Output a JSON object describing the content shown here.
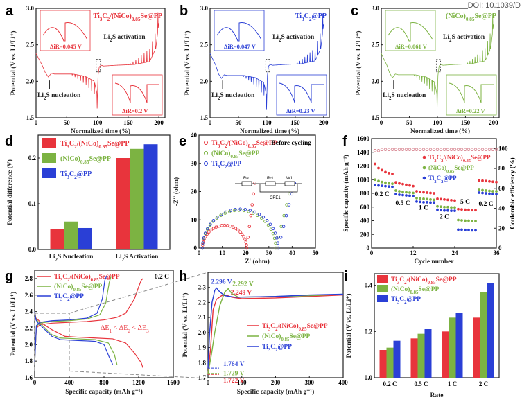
{
  "doi": "DOI: 10.1039/D",
  "colors": {
    "red": "#e8343c",
    "green": "#7cb342",
    "blue": "#2a3fd6",
    "axis": "#222",
    "dash": "#888"
  },
  "chart_data": [
    {
      "id": "a",
      "letter": "a",
      "type": "line",
      "legend": "Ti3C2/(NiCo)0.85Se@PP",
      "series_color": "red",
      "xlabel": "Normalized time (%)",
      "ylabel": "Potential (V vs. Li/Li⁺)",
      "xlim": [
        0,
        210
      ],
      "ylim": [
        1.5,
        3.0
      ],
      "xticks": [
        0,
        50,
        100,
        150,
        200
      ],
      "yticks": [
        1.5,
        2.0,
        2.5,
        3.0
      ],
      "x": [
        0,
        5,
        10,
        15,
        20,
        25,
        30,
        40,
        60,
        80,
        95,
        100,
        101,
        103,
        106,
        110,
        130,
        160,
        185,
        195,
        200
      ],
      "y": [
        2.38,
        2.3,
        2.22,
        2.12,
        2.06,
        2.11,
        2.1,
        2.1,
        2.1,
        2.07,
        2.0,
        1.8,
        2.08,
        2.2,
        2.22,
        2.21,
        2.22,
        2.23,
        2.27,
        2.45,
        2.8
      ],
      "nucleation_label": "Li2S nucleation",
      "activation_label": "Li2S activation",
      "inset_top_dIR": "ΔiR=0.045 V",
      "inset_bottom_dIR": "ΔiR=0.2 V"
    },
    {
      "id": "b",
      "letter": "b",
      "type": "line",
      "legend": "Ti3C2@PP",
      "series_color": "blue",
      "xlabel": "Normalized time (%)",
      "ylabel": "Potential (V vs. Li/Li⁺)",
      "xlim": [
        0,
        210
      ],
      "ylim": [
        1.5,
        3.0
      ],
      "xticks": [
        0,
        50,
        100,
        150,
        200
      ],
      "yticks": [
        1.5,
        2.0,
        2.5,
        3.0
      ],
      "x": [
        0,
        5,
        10,
        15,
        20,
        25,
        30,
        40,
        60,
        80,
        95,
        100,
        101,
        103,
        106,
        110,
        130,
        160,
        185,
        195,
        200
      ],
      "y": [
        2.38,
        2.3,
        2.22,
        2.1,
        2.04,
        2.09,
        2.08,
        2.08,
        2.08,
        2.05,
        1.98,
        1.78,
        2.08,
        2.21,
        2.23,
        2.22,
        2.23,
        2.24,
        2.28,
        2.45,
        2.78
      ],
      "nucleation_label": "Li2S nucleation",
      "activation_label": "Li2S activation",
      "inset_top_dIR": "ΔiR=0.047 V",
      "inset_bottom_dIR": "ΔiR=0.23 V"
    },
    {
      "id": "c",
      "letter": "c",
      "type": "line",
      "legend": "(NiCo)0.85Se@PP",
      "series_color": "green",
      "xlabel": "Normalized time (%)",
      "ylabel": "Potential (V vs. Li/Li⁺)",
      "xlim": [
        0,
        210
      ],
      "ylim": [
        1.5,
        3.0
      ],
      "xticks": [
        0,
        50,
        100,
        150,
        200
      ],
      "yticks": [
        1.5,
        2.0,
        2.5,
        3.0
      ],
      "x": [
        0,
        5,
        10,
        15,
        20,
        25,
        30,
        40,
        60,
        80,
        95,
        100,
        101,
        103,
        106,
        110,
        130,
        160,
        185,
        195,
        200
      ],
      "y": [
        2.38,
        2.3,
        2.22,
        2.11,
        2.05,
        2.1,
        2.09,
        2.09,
        2.09,
        2.06,
        1.99,
        1.79,
        2.08,
        2.21,
        2.23,
        2.22,
        2.23,
        2.24,
        2.28,
        2.45,
        2.78
      ],
      "nucleation_label": "Li2S nucleation",
      "activation_label": "Li2S activation",
      "inset_top_dIR": "ΔiR=0.061 V",
      "inset_bottom_dIR": "ΔiR=0.22 V"
    },
    {
      "id": "d",
      "letter": "d",
      "type": "bar",
      "ylabel": "Potential difference (V)",
      "categories": [
        "Li2S Nucleation",
        "Li2S Activation"
      ],
      "ylim": [
        0,
        0.25
      ],
      "yticks": [
        0.0,
        0.1,
        0.2
      ],
      "series": [
        {
          "name": "Ti3C2/(NiCo)0.85Se@PP",
          "color": "red",
          "values": [
            0.045,
            0.2
          ]
        },
        {
          "name": "(NiCo)0.85Se@PP",
          "color": "green",
          "values": [
            0.061,
            0.22
          ]
        },
        {
          "name": "Ti3C2@PP",
          "color": "blue",
          "values": [
            0.047,
            0.23
          ]
        }
      ]
    },
    {
      "id": "e",
      "letter": "e",
      "type": "scatter",
      "xlabel": "Z' (ohm)",
      "ylabel": "-Z'' (ohm)",
      "xlim": [
        0,
        50
      ],
      "ylim": [
        0,
        40
      ],
      "xticks": [
        0,
        10,
        20,
        30,
        40,
        50
      ],
      "yticks": [
        0,
        10,
        20,
        30,
        40
      ],
      "annotation": "Before cycling",
      "circuit_labels": [
        "Re",
        "Rct",
        "W1",
        "CPE1"
      ],
      "series": [
        {
          "name": "Ti3C2/(NiCo)0.85Se@PP",
          "color": "red",
          "semicircle": [
            1.5,
            20.5
          ],
          "tail_end": [
            24,
            23
          ]
        },
        {
          "name": "(NiCo)0.85Se@PP",
          "color": "green",
          "semicircle": [
            1.5,
            33
          ],
          "tail_end": [
            40,
            23
          ]
        },
        {
          "name": "Ti3C2@PP",
          "color": "blue",
          "semicircle": [
            1.5,
            34
          ],
          "tail_end": [
            41,
            23
          ]
        }
      ]
    },
    {
      "id": "f",
      "letter": "f",
      "type": "scatter",
      "xlabel": "Cycle number",
      "ylabel": "Specific capacity (mAh g⁻¹)",
      "y2label": "Coulombic efficiency (%)",
      "xlim": [
        0,
        36
      ],
      "ylim": [
        0,
        1600
      ],
      "xticks": [
        0,
        12,
        24,
        36
      ],
      "yticks": [
        0,
        200,
        400,
        600,
        800,
        1000,
        1200,
        1400,
        1600
      ],
      "y2lim": [
        0,
        110
      ],
      "y2ticks": [
        0,
        20,
        40,
        60,
        80,
        100
      ],
      "rates": [
        "0.2 C",
        "0.5 C",
        "1 C",
        "2 C",
        "5 C",
        "0.2 C"
      ],
      "series": [
        {
          "name": "Ti3C2/(NiCo)0.85Se@PP",
          "color": "red",
          "values": [
            1230,
            1170,
            1140,
            1110,
            1095,
            1085,
            960,
            945,
            935,
            925,
            915,
            905,
            830,
            820,
            815,
            810,
            805,
            800,
            720,
            715,
            710,
            705,
            700,
            695,
            570,
            565,
            560,
            560,
            555,
            555,
            990,
            985,
            980,
            975,
            970,
            965
          ]
        },
        {
          "name": "(NiCo)0.85Se@PP",
          "color": "green",
          "values": [
            1000,
            980,
            965,
            955,
            945,
            940,
            840,
            830,
            820,
            815,
            810,
            805,
            730,
            725,
            720,
            715,
            710,
            705,
            610,
            605,
            600,
            600,
            595,
            595,
            410,
            405,
            400,
            400,
            395,
            395,
            850,
            845,
            840,
            835,
            830,
            830
          ]
        },
        {
          "name": "Ti3C2@PP",
          "color": "blue",
          "values": [
            920,
            915,
            910,
            905,
            900,
            895,
            790,
            780,
            775,
            770,
            765,
            760,
            680,
            675,
            670,
            670,
            665,
            665,
            560,
            555,
            550,
            550,
            545,
            545,
            270,
            270,
            265,
            265,
            260,
            260,
            810,
            805,
            800,
            795,
            790,
            790
          ]
        }
      ],
      "ce": [
        98,
        98,
        99,
        99,
        99,
        99,
        99,
        99,
        99,
        99,
        99,
        99,
        99,
        99,
        99,
        99,
        99,
        99,
        99,
        99,
        99,
        99,
        99,
        99,
        99,
        99,
        99,
        99,
        99,
        99,
        99,
        99,
        99,
        99,
        99,
        99
      ]
    },
    {
      "id": "g",
      "letter": "g",
      "type": "line",
      "xlabel": "Specific capacity (mAh g⁻¹)",
      "ylabel": "Potential (V vs. Li/Li⁺)",
      "xlim": [
        0,
        1600
      ],
      "ylim": [
        1.6,
        2.9
      ],
      "xticks": [
        0,
        400,
        800,
        1200,
        1600
      ],
      "yticks": [
        1.6,
        1.8,
        2.0,
        2.2,
        2.4,
        2.6,
        2.8
      ],
      "rate": "0.2 C",
      "annotation": "ΔE1 < ΔE2 < ΔE3",
      "series": [
        {
          "name": "Ti3C2/(NiCo)0.85Se@PP",
          "color": "red",
          "discharge": {
            "x": [
              0,
              15,
              40,
              80,
              200,
              350,
              500,
              700,
              900,
              1050,
              1150,
              1230,
              1250
            ],
            "y": [
              2.4,
              2.32,
              2.3,
              2.26,
              2.18,
              2.1,
              2.09,
              2.08,
              2.07,
              2.02,
              1.9,
              1.78,
              1.72
            ]
          },
          "charge": {
            "x": [
              0,
              20,
              60,
              200,
              400,
              600,
              800,
              950,
              1050,
              1150,
              1200,
              1230,
              1250
            ],
            "y": [
              1.78,
              2.2,
              2.24,
              2.26,
              2.27,
              2.28,
              2.3,
              2.33,
              2.38,
              2.55,
              2.7,
              2.78,
              2.8
            ]
          }
        },
        {
          "name": "(NiCo)0.85Se@PP",
          "color": "green",
          "discharge": {
            "x": [
              0,
              15,
              40,
              80,
              200,
              300,
              500,
              700,
              850,
              920,
              950
            ],
            "y": [
              2.4,
              2.31,
              2.28,
              2.24,
              2.12,
              2.08,
              2.07,
              2.06,
              2.02,
              1.88,
              1.76
            ]
          },
          "charge": {
            "x": [
              0,
              20,
              60,
              200,
              400,
              600,
              750,
              820,
              860,
              880
            ],
            "y": [
              1.76,
              2.22,
              2.26,
              2.28,
              2.29,
              2.31,
              2.36,
              2.5,
              2.75,
              2.82
            ]
          }
        },
        {
          "name": "Ti3C2@PP",
          "color": "blue",
          "discharge": {
            "x": [
              0,
              15,
              40,
              80,
              200,
              300,
              500,
              700,
              800,
              860,
              900
            ],
            "y": [
              2.4,
              2.3,
              2.26,
              2.22,
              2.1,
              2.06,
              2.05,
              2.04,
              2.0,
              1.85,
              1.76
            ]
          },
          "charge": {
            "x": [
              0,
              20,
              60,
              200,
              400,
              600,
              720,
              780,
              810,
              830
            ],
            "y": [
              1.76,
              2.23,
              2.27,
              2.29,
              2.3,
              2.32,
              2.38,
              2.55,
              2.78,
              2.83
            ]
          }
        }
      ]
    },
    {
      "id": "h",
      "letter": "h",
      "type": "line",
      "xlabel": "Specific capacity (mAh g⁻¹)",
      "ylabel": "Potential (V vs. Li/Li⁺)",
      "xlim": [
        0,
        400
      ],
      "ylim": [
        1.7,
        2.4
      ],
      "xticks": [
        0,
        100,
        200,
        300,
        400
      ],
      "yticks": [
        1.7,
        1.8,
        1.9,
        2.0,
        2.1,
        2.2,
        2.3
      ],
      "series": [
        {
          "name": "Ti3C2/(NiCo)0.85Se@PP",
          "color": "red",
          "min": 1.722,
          "peak": 2.249,
          "peak_x": 55,
          "x": [
            0,
            8,
            15,
            25,
            40,
            55,
            70,
            100,
            200,
            300,
            400
          ],
          "y": [
            1.722,
            1.9,
            2.15,
            2.22,
            2.245,
            2.249,
            2.235,
            2.225,
            2.23,
            2.24,
            2.25
          ]
        },
        {
          "name": "(NiCo)0.85Se@PP",
          "color": "green",
          "min": 1.729,
          "peak": 2.292,
          "peak_x": 60,
          "x": [
            0,
            10,
            20,
            35,
            50,
            60,
            70,
            90,
            200,
            300,
            400
          ],
          "y": [
            1.729,
            1.85,
            2.0,
            2.18,
            2.27,
            2.292,
            2.26,
            2.235,
            2.24,
            2.245,
            2.255
          ]
        },
        {
          "name": "Ti3C2@PP",
          "color": "blue",
          "min": 1.764,
          "peak": 2.296,
          "peak_x": 25,
          "x": [
            0,
            5,
            12,
            20,
            25,
            35,
            50,
            80,
            200,
            300,
            400
          ],
          "y": [
            1.764,
            2.0,
            2.2,
            2.28,
            2.296,
            2.27,
            2.245,
            2.235,
            2.24,
            2.25,
            2.255
          ]
        }
      ]
    },
    {
      "id": "i",
      "letter": "i",
      "type": "bar",
      "xlabel": "Rate",
      "ylabel": "Potential (V vs. Li/Li⁺)",
      "categories": [
        "0.2 C",
        "0.5 C",
        "1 C",
        "2 C"
      ],
      "ylim": [
        0,
        0.45
      ],
      "yticks": [
        0.0,
        0.2,
        0.4
      ],
      "series": [
        {
          "name": "Ti3C2/(NiCo)0.85Se@PP",
          "color": "red",
          "values": [
            0.12,
            0.17,
            0.2,
            0.26
          ]
        },
        {
          "name": "(NiCo)0.85Se@PP",
          "color": "green",
          "values": [
            0.13,
            0.19,
            0.26,
            0.37
          ]
        },
        {
          "name": "Ti3C2@PP",
          "color": "blue",
          "values": [
            0.16,
            0.21,
            0.28,
            0.41
          ]
        }
      ]
    }
  ]
}
